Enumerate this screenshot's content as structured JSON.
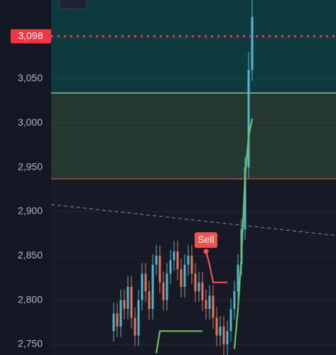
{
  "chart_data": {
    "type": "candlestick",
    "ylim": [
      2738,
      3139
    ],
    "yticks": [
      {
        "value": 2750,
        "label": "2,750"
      },
      {
        "value": 2800,
        "label": "2,800"
      },
      {
        "value": 2850,
        "label": "2,850"
      },
      {
        "value": 2900,
        "label": "2,900"
      },
      {
        "value": 2950,
        "label": "2,950"
      },
      {
        "value": 3000,
        "label": "3,000"
      },
      {
        "value": 3050,
        "label": "3,050"
      }
    ],
    "grid": true,
    "price_line": {
      "value": 3098,
      "label": "3,098",
      "color": "#f23645"
    },
    "levels": [
      {
        "value": 3034,
        "color": "#8cc7b5"
      },
      {
        "value": 2937,
        "color": "#e0464f"
      }
    ],
    "zones": [
      {
        "from": 3034,
        "to": 3139,
        "color": "#0f3b40"
      },
      {
        "from": 2937,
        "to": 3034,
        "color": "#24382f"
      }
    ],
    "trendline": [
      2908,
      2873
    ],
    "up_color": "#4fb8d0",
    "down_color": "#e8735a",
    "open": [
      2765,
      2785,
      2770,
      2800,
      2790,
      2815,
      2780,
      2760,
      2800,
      2830,
      2810,
      2790,
      2840,
      2850,
      2820,
      2800,
      2830,
      2845,
      2855,
      2835,
      2815,
      2840,
      2850,
      2830,
      2810,
      2820,
      2800,
      2790,
      2805,
      2780,
      2760,
      2770,
      2750,
      2765,
      2790,
      2810,
      2840,
      2880,
      2950,
      3060
    ],
    "high": [
      2797,
      2797,
      2812,
      2812,
      2827,
      2827,
      2792,
      2812,
      2842,
      2842,
      2822,
      2852,
      2862,
      2862,
      2832,
      2842,
      2857,
      2867,
      2867,
      2847,
      2852,
      2862,
      2862,
      2842,
      2832,
      2832,
      2812,
      2817,
      2817,
      2792,
      2782,
      2782,
      2777,
      2802,
      2822,
      2852,
      2892,
      2962,
      3080,
      3140
    ],
    "low": [
      2753,
      2758,
      2758,
      2778,
      2778,
      2768,
      2748,
      2748,
      2788,
      2798,
      2778,
      2778,
      2828,
      2808,
      2788,
      2788,
      2818,
      2833,
      2823,
      2803,
      2803,
      2828,
      2818,
      2798,
      2798,
      2788,
      2778,
      2778,
      2768,
      2748,
      2748,
      2738,
      2738,
      2753,
      2778,
      2798,
      2828,
      2868,
      2938,
      3048
    ],
    "close": [
      2785,
      2770,
      2800,
      2790,
      2815,
      2780,
      2760,
      2800,
      2830,
      2810,
      2790,
      2840,
      2850,
      2820,
      2800,
      2830,
      2845,
      2855,
      2835,
      2815,
      2840,
      2850,
      2830,
      2810,
      2820,
      2800,
      2790,
      2805,
      2780,
      2760,
      2770,
      2750,
      2765,
      2790,
      2810,
      2840,
      2880,
      2950,
      3060,
      3120
    ],
    "series": [
      {
        "color": "#6cc25a",
        "values": [
          null,
          null,
          null,
          null,
          null,
          null,
          null,
          null,
          null,
          null,
          null,
          null,
          2740,
          2765,
          2765,
          2765,
          2765,
          2765,
          2765,
          2765,
          2765,
          2765,
          2765,
          2765,
          2765,
          2765,
          null,
          null,
          null,
          null,
          null,
          null,
          null,
          null,
          2745,
          2790,
          2850,
          2940,
          2985,
          3005
        ]
      },
      {
        "color": "#f0524f",
        "values": [
          null,
          null,
          null,
          null,
          null,
          null,
          null,
          null,
          null,
          null,
          null,
          null,
          null,
          null,
          null,
          null,
          null,
          null,
          null,
          null,
          null,
          null,
          null,
          null,
          null,
          null,
          2855,
          2840,
          2820,
          2820,
          2820,
          2820,
          2820,
          null,
          null,
          null,
          null,
          null,
          null,
          null
        ]
      }
    ],
    "signal": {
      "label": "Sell",
      "index": 26,
      "value": 2855,
      "color": "#f0524f"
    }
  }
}
